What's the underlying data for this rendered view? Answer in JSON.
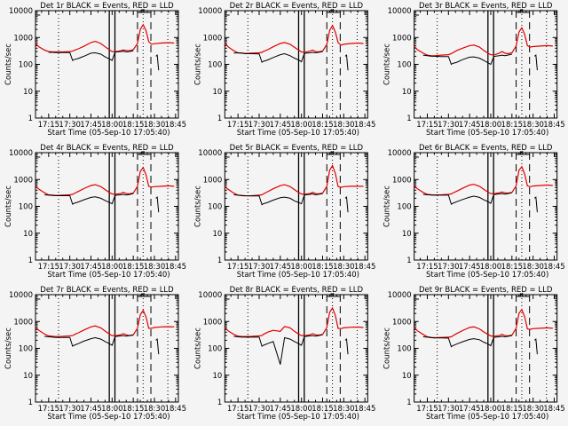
{
  "chart_data": [
    {
      "type": "line",
      "title": "Det 1r BLACK = Events, RED = LLD",
      "detector": "1r"
    },
    {
      "type": "line",
      "title": "Det 2r BLACK = Events, RED = LLD",
      "detector": "2r"
    },
    {
      "type": "line",
      "title": "Det 3r BLACK = Events, RED = LLD",
      "detector": "3r"
    },
    {
      "type": "line",
      "title": "Det 4r BLACK = Events, RED = LLD",
      "detector": "4r"
    },
    {
      "type": "line",
      "title": "Det 5r BLACK = Events, RED = LLD",
      "detector": "5r"
    },
    {
      "type": "line",
      "title": "Det 6r BLACK = Events, RED = LLD",
      "detector": "6r"
    },
    {
      "type": "line",
      "title": "Det 7r BLACK = Events, RED = LLD",
      "detector": "7r"
    },
    {
      "type": "line",
      "title": "Det 8r BLACK = Events, RED = LLD",
      "detector": "8r"
    },
    {
      "type": "line",
      "title": "Det 9r BLACK = Events, RED = LLD",
      "detector": "9r"
    }
  ],
  "common": {
    "xlabel": "Start Time (05-Sep-10 17:05:40)",
    "ylabel": "Counts/sec",
    "xticks": [
      "17:15",
      "17:30",
      "17:45",
      "18:00",
      "18:15",
      "18:30",
      "18:45"
    ],
    "xtick_minutes": [
      15,
      30,
      45,
      60,
      75,
      90,
      105
    ],
    "xlim_minutes": [
      5.67,
      107
    ],
    "yscale": "log",
    "ylim": [
      1,
      10000
    ],
    "yticks": [
      "1",
      "10",
      "100",
      "1000",
      "10000"
    ],
    "series_colors": {
      "events": "#000000",
      "lld": "#e00000"
    },
    "series_names": [
      "Events",
      "LLD"
    ],
    "markers": {
      "dotted": [
        22,
        82,
        99.5
      ],
      "solid": [
        58,
        62
      ],
      "dashed": [
        78,
        87.5
      ]
    },
    "x_minutes": [
      5.67,
      8,
      12,
      15,
      18,
      20,
      25,
      30,
      32,
      33,
      36,
      40,
      45,
      48,
      52,
      55,
      58,
      60,
      62,
      63,
      66,
      68,
      70,
      72,
      75,
      78,
      80,
      82,
      84,
      86,
      88,
      90,
      95,
      100,
      104
    ],
    "panels": [
      {
        "lld": [
          600,
          450,
          340,
          300,
          290,
          290,
          290,
          300,
          310,
          330,
          380,
          470,
          650,
          720,
          600,
          450,
          350,
          300,
          300,
          300,
          320,
          340,
          330,
          320,
          350,
          600,
          2000,
          3000,
          1800,
          700,
          560,
          590,
          620,
          640,
          620
        ],
        "events": [
          null,
          null,
          null,
          280,
          280,
          275,
          275,
          275,
          140,
          150,
          165,
          200,
          260,
          270,
          240,
          190,
          160,
          140,
          280,
          290,
          300,
          310,
          290,
          300,
          320,
          null,
          null,
          null,
          null,
          null,
          null,
          null,
          null,
          null,
          null
        ]
      },
      {
        "lld": [
          620,
          450,
          320,
          270,
          260,
          255,
          260,
          270,
          280,
          300,
          350,
          450,
          600,
          650,
          560,
          430,
          340,
          290,
          280,
          285,
          310,
          340,
          300,
          290,
          310,
          550,
          1800,
          2800,
          1600,
          650,
          520,
          560,
          600,
          620,
          600
        ],
        "events": [
          null,
          null,
          260,
          270,
          260,
          250,
          250,
          245,
          120,
          130,
          145,
          180,
          230,
          250,
          210,
          170,
          145,
          125,
          250,
          260,
          270,
          280,
          270,
          280,
          300,
          null,
          null,
          null,
          null,
          null,
          null,
          null,
          null,
          null,
          null
        ]
      },
      {
        "lld": [
          480,
          350,
          260,
          220,
          210,
          210,
          220,
          230,
          250,
          270,
          330,
          400,
          500,
          520,
          440,
          330,
          260,
          230,
          225,
          230,
          260,
          300,
          260,
          250,
          270,
          480,
          1600,
          2300,
          1300,
          500,
          440,
          460,
          480,
          500,
          480
        ],
        "events": [
          null,
          null,
          220,
          210,
          200,
          200,
          195,
          195,
          100,
          108,
          120,
          150,
          185,
          190,
          170,
          140,
          115,
          100,
          190,
          200,
          210,
          220,
          210,
          220,
          240,
          null,
          null,
          null,
          null,
          null,
          null,
          null,
          null,
          null,
          null
        ]
      },
      {
        "lld": [
          580,
          440,
          320,
          270,
          260,
          255,
          260,
          270,
          280,
          300,
          360,
          460,
          600,
          640,
          540,
          420,
          330,
          290,
          280,
          285,
          300,
          330,
          300,
          290,
          310,
          560,
          2000,
          2800,
          1500,
          560,
          520,
          540,
          560,
          580,
          560
        ],
        "events": [
          null,
          null,
          270,
          260,
          255,
          250,
          250,
          250,
          120,
          130,
          145,
          175,
          215,
          225,
          200,
          165,
          140,
          125,
          250,
          260,
          270,
          280,
          265,
          275,
          300,
          null,
          null,
          null,
          null,
          null,
          null,
          null,
          null,
          null,
          null
        ]
      },
      {
        "lld": [
          550,
          430,
          310,
          260,
          250,
          245,
          250,
          260,
          270,
          290,
          350,
          450,
          590,
          640,
          540,
          420,
          330,
          290,
          280,
          285,
          300,
          330,
          300,
          290,
          310,
          560,
          2200,
          3300,
          1700,
          550,
          510,
          540,
          560,
          560,
          560
        ],
        "events": [
          null,
          null,
          270,
          260,
          255,
          250,
          245,
          245,
          115,
          125,
          140,
          170,
          210,
          220,
          200,
          160,
          140,
          125,
          260,
          270,
          280,
          290,
          270,
          280,
          300,
          null,
          null,
          null,
          null,
          null,
          null,
          null,
          null,
          null,
          null
        ]
      },
      {
        "lld": [
          600,
          450,
          330,
          280,
          270,
          265,
          270,
          280,
          290,
          310,
          370,
          470,
          620,
          660,
          560,
          430,
          340,
          300,
          300,
          300,
          320,
          340,
          320,
          310,
          330,
          580,
          2200,
          3000,
          1600,
          580,
          540,
          570,
          600,
          620,
          600
        ],
        "events": [
          null,
          null,
          280,
          270,
          265,
          260,
          260,
          260,
          120,
          130,
          150,
          180,
          220,
          240,
          215,
          175,
          150,
          130,
          270,
          280,
          290,
          300,
          285,
          295,
          320,
          null,
          null,
          null,
          null,
          null,
          null,
          null,
          null,
          null,
          null
        ]
      },
      {
        "lld": [
          620,
          470,
          340,
          290,
          280,
          275,
          280,
          290,
          300,
          320,
          380,
          480,
          630,
          680,
          580,
          440,
          340,
          300,
          300,
          300,
          320,
          350,
          320,
          300,
          320,
          560,
          1800,
          2600,
          1500,
          560,
          560,
          600,
          630,
          640,
          630
        ],
        "events": [
          null,
          null,
          280,
          270,
          260,
          255,
          255,
          255,
          120,
          130,
          150,
          185,
          230,
          250,
          220,
          180,
          150,
          130,
          270,
          280,
          290,
          300,
          285,
          295,
          310,
          null,
          null,
          null,
          null,
          null,
          null,
          null,
          null,
          null,
          null
        ]
      },
      {
        "lld": [
          600,
          450,
          330,
          285,
          275,
          275,
          280,
          290,
          300,
          330,
          400,
          470,
          430,
          650,
          580,
          430,
          340,
          300,
          300,
          300,
          320,
          350,
          320,
          310,
          330,
          600,
          2200,
          3200,
          1700,
          560,
          540,
          580,
          610,
          620,
          600
        ],
        "events": [
          null,
          null,
          280,
          270,
          260,
          260,
          260,
          260,
          120,
          130,
          150,
          180,
          25,
          250,
          220,
          180,
          150,
          130,
          270,
          280,
          290,
          300,
          285,
          295,
          320,
          null,
          null,
          null,
          null,
          null,
          null,
          null,
          null,
          null,
          null
        ]
      },
      {
        "lld": [
          600,
          450,
          330,
          270,
          255,
          250,
          255,
          260,
          270,
          290,
          360,
          460,
          600,
          630,
          530,
          410,
          330,
          290,
          280,
          285,
          300,
          330,
          300,
          290,
          310,
          560,
          2000,
          2800,
          1500,
          530,
          510,
          540,
          560,
          580,
          560
        ],
        "events": [
          null,
          null,
          270,
          260,
          250,
          245,
          245,
          240,
          115,
          125,
          145,
          175,
          215,
          230,
          210,
          170,
          145,
          125,
          250,
          260,
          270,
          280,
          270,
          280,
          300,
          null,
          null,
          null,
          null,
          null,
          null,
          null,
          null,
          null,
          null
        ]
      }
    ]
  }
}
